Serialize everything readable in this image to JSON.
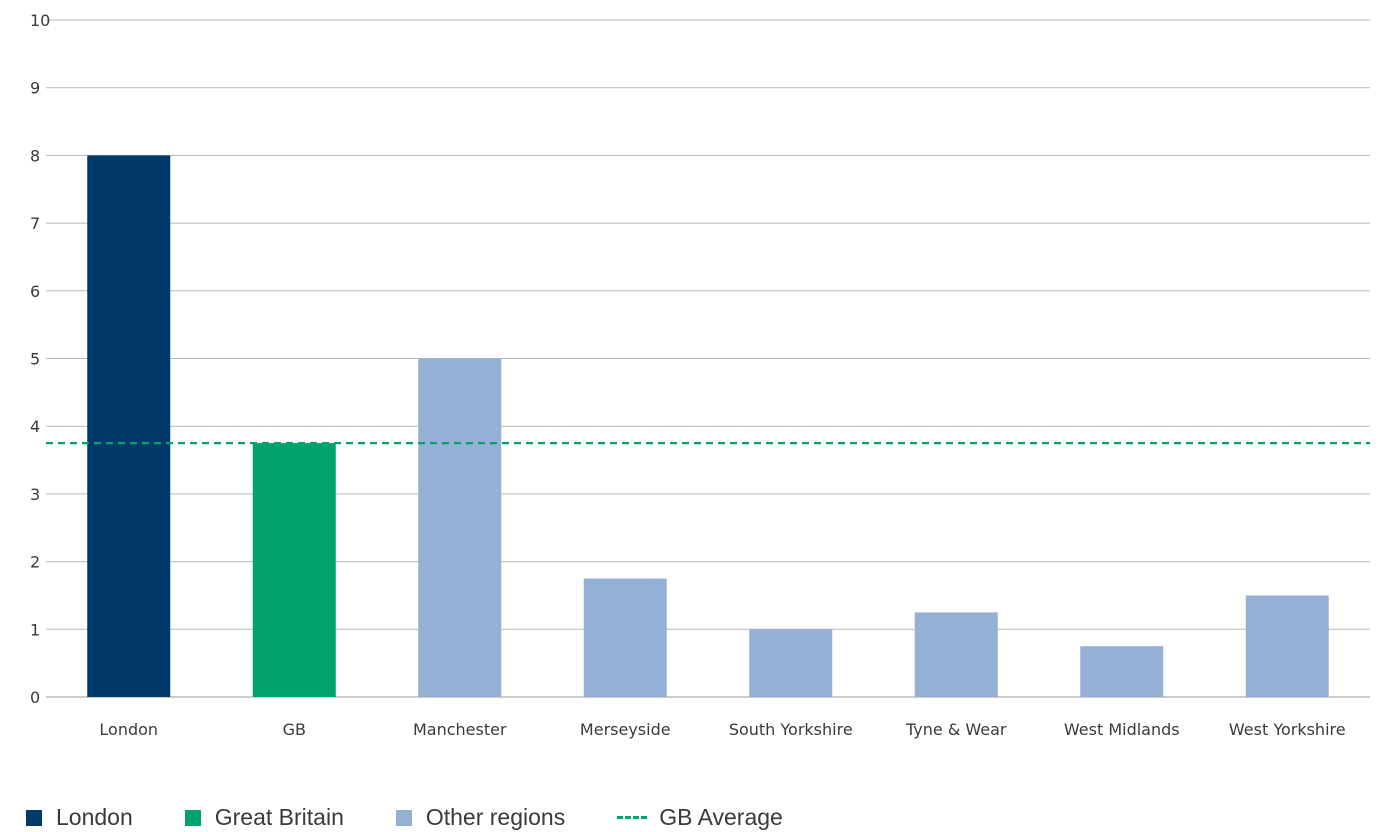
{
  "chart_data": {
    "type": "bar",
    "categories": [
      "London",
      "GB",
      "Manchester",
      "Merseyside",
      "South Yorkshire",
      "Tyne & Wear",
      "West Midlands",
      "West Yorkshire"
    ],
    "values": [
      8,
      3.75,
      5,
      1.75,
      1,
      1.25,
      0.75,
      1.5
    ],
    "bar_groups": [
      "london",
      "great_britain",
      "other",
      "other",
      "other",
      "other",
      "other",
      "other"
    ],
    "ylim": [
      0,
      10
    ],
    "yticks": [
      "0",
      "1",
      "2",
      "3",
      "4",
      "5",
      "6",
      "7",
      "8",
      "9",
      "10"
    ],
    "reference_line": {
      "name": "GB Average",
      "value": 3.75,
      "style": "dashed",
      "color": "#00a36c"
    },
    "grid": true,
    "legend_position": "bottom-left",
    "colors": {
      "london": "#003a6a",
      "great_britain": "#00a36c",
      "other": "#95b0d5"
    }
  },
  "legend": {
    "items": [
      {
        "label": "London",
        "color": "#003a6a",
        "kind": "swatch"
      },
      {
        "label": "Great Britain",
        "color": "#00a36c",
        "kind": "swatch"
      },
      {
        "label": "Other regions",
        "color": "#95b0d5",
        "kind": "swatch"
      },
      {
        "label": "GB Average",
        "color": "#00a36c",
        "kind": "dash"
      }
    ]
  }
}
